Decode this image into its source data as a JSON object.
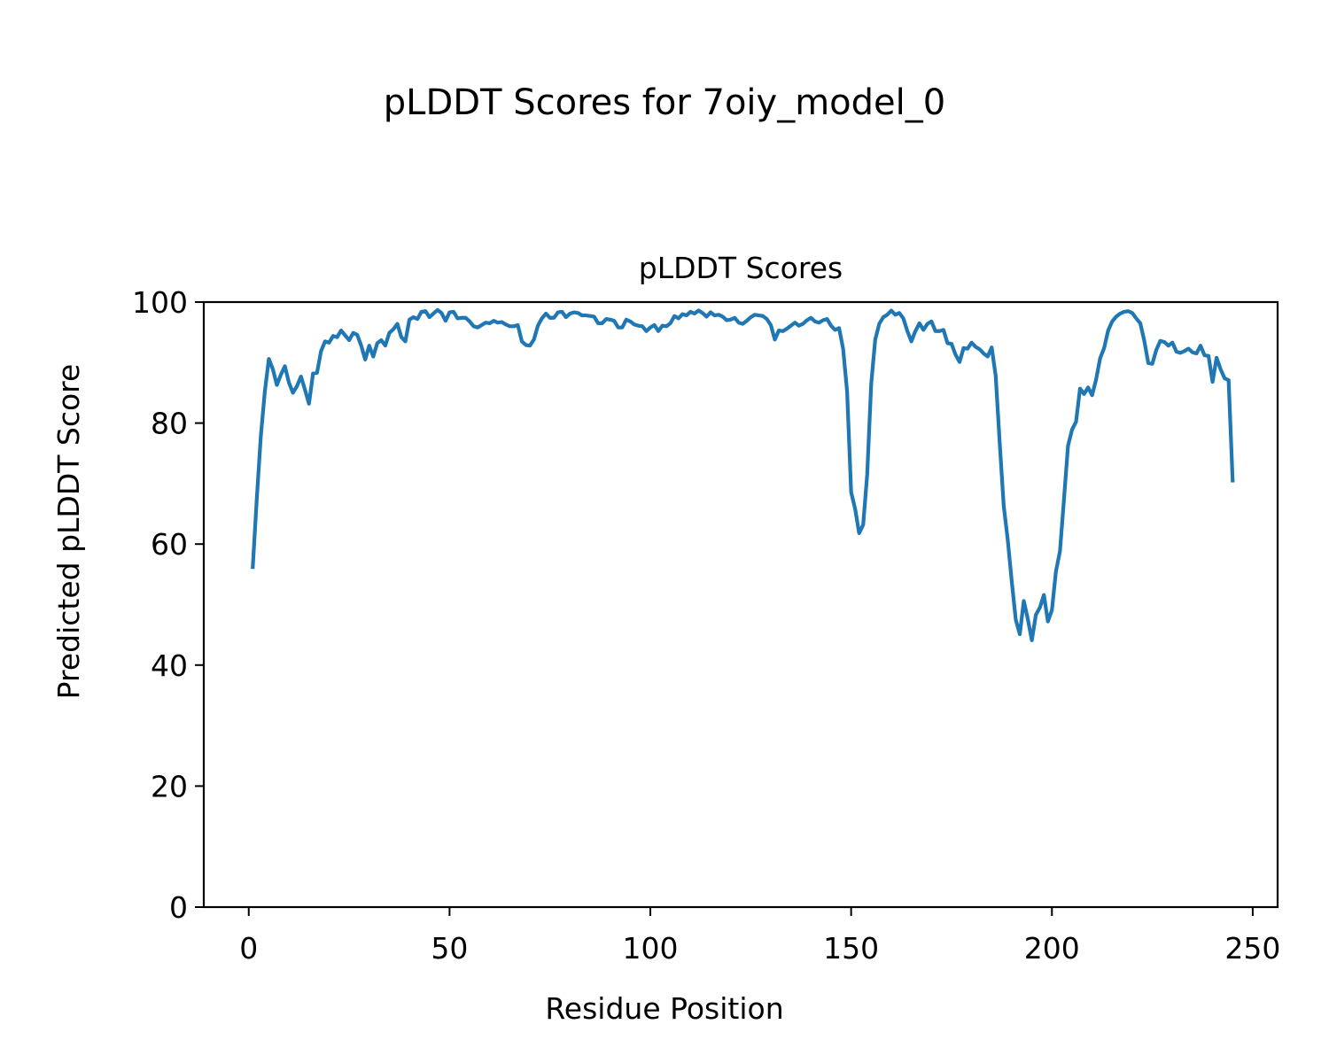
{
  "figure": {
    "suptitle": "pLDDT Scores for 7oiy_model_0"
  },
  "chart_data": {
    "type": "line",
    "title": "pLDDT Scores",
    "xlabel": "Residue Position",
    "ylabel": "Predicted pLDDT Score",
    "xlim": [
      -11.2,
      256.2
    ],
    "ylim": [
      0,
      100
    ],
    "xticks": [
      0,
      50,
      100,
      150,
      200,
      250
    ],
    "yticks": [
      0,
      20,
      40,
      60,
      80,
      100
    ],
    "grid": false,
    "legend": "none",
    "series": [
      {
        "color": "#1f77b4",
        "x_start": 1,
        "values": [
          56.2,
          67.5,
          77.8,
          85.2,
          90.6,
          88.9,
          86.3,
          88.0,
          89.4,
          86.7,
          85.0,
          86.1,
          87.7,
          85.5,
          83.2,
          88.2,
          88.3,
          91.9,
          93.5,
          93.3,
          94.4,
          94.2,
          95.3,
          94.5,
          93.7,
          94.9,
          94.6,
          92.8,
          90.5,
          92.8,
          91.0,
          93.2,
          93.7,
          92.8,
          94.9,
          95.5,
          96.4,
          94.2,
          93.5,
          97.1,
          97.5,
          97.2,
          98.4,
          98.5,
          97.5,
          98.1,
          98.7,
          98.2,
          96.9,
          98.3,
          98.4,
          97.3,
          97.4,
          97.4,
          96.8,
          96.0,
          95.8,
          96.2,
          96.6,
          96.5,
          96.9,
          96.6,
          96.7,
          96.3,
          96.0,
          96.0,
          96.2,
          93.5,
          92.9,
          92.8,
          93.8,
          96.1,
          97.3,
          98.1,
          97.4,
          97.4,
          98.3,
          98.4,
          97.5,
          98.1,
          98.3,
          98.2,
          97.8,
          97.8,
          97.7,
          97.6,
          96.5,
          96.5,
          97.2,
          97.1,
          96.9,
          95.8,
          95.8,
          97.1,
          96.8,
          96.3,
          96.1,
          96.0,
          95.2,
          95.8,
          96.2,
          95.2,
          96.1,
          96.0,
          96.5,
          97.7,
          97.3,
          98.0,
          97.8,
          98.4,
          98.1,
          98.6,
          98.2,
          97.6,
          98.3,
          97.8,
          97.9,
          97.6,
          97.0,
          97.1,
          97.4,
          96.6,
          96.4,
          96.9,
          97.5,
          97.9,
          97.8,
          97.7,
          97.2,
          96.2,
          93.8,
          95.3,
          95.2,
          95.6,
          96.1,
          96.6,
          96.1,
          96.4,
          97.0,
          97.4,
          96.8,
          96.6,
          97.0,
          97.2,
          96.1,
          95.4,
          95.7,
          92.3,
          85.2,
          68.6,
          65.8,
          61.8,
          63.2,
          71.5,
          86.5,
          93.8,
          96.4,
          97.5,
          97.9,
          98.6,
          97.9,
          98.2,
          97.3,
          95.2,
          93.5,
          95.2,
          96.5,
          95.4,
          96.4,
          96.8,
          95.2,
          95.2,
          95.4,
          93.2,
          93.1,
          91.3,
          90.1,
          92.4,
          92.3,
          93.3,
          92.6,
          92.2,
          91.5,
          91.0,
          92.5,
          87.8,
          76.7,
          66.3,
          60.7,
          53.8,
          47.5,
          45.1,
          50.6,
          47.6,
          44.1,
          48.3,
          49.5,
          51.6,
          47.2,
          49.1,
          55.5,
          58.8,
          67.4,
          76.2,
          78.9,
          80.2,
          85.7,
          84.8,
          85.9,
          84.6,
          87.2,
          90.7,
          92.4,
          95.3,
          96.8,
          97.6,
          98.1,
          98.4,
          98.5,
          98.2,
          97.3,
          96.5,
          93.6,
          89.9,
          89.8,
          92.1,
          93.6,
          93.4,
          92.8,
          93.3,
          91.8,
          91.6,
          91.9,
          92.3,
          91.7,
          91.5,
          92.8,
          91.2,
          91.1,
          86.8,
          90.8,
          88.9,
          87.4,
          87.1,
          70.5
        ]
      }
    ]
  }
}
